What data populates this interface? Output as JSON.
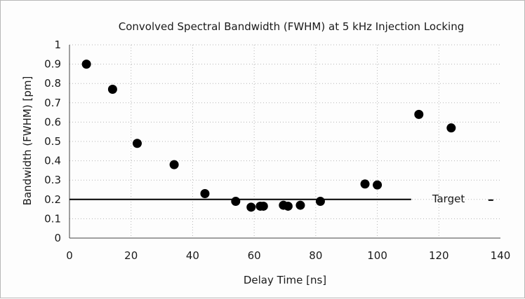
{
  "chart_data": {
    "type": "scatter",
    "title": "Convolved Spectral Bandwidth (FWHM) at 5 kHz Injection Locking",
    "xlabel": "Delay Time [ns]",
    "ylabel": "Bandwidth (FWHM) [pm]",
    "xlim": [
      0,
      140
    ],
    "ylim": [
      0,
      1
    ],
    "x_ticks": [
      0,
      20,
      40,
      60,
      80,
      100,
      120,
      140
    ],
    "y_ticks": [
      0,
      0.1,
      0.2,
      0.3,
      0.4,
      0.5,
      0.6,
      0.7,
      0.8,
      0.9,
      1
    ],
    "grid": "dotted",
    "series": [
      {
        "x": [
          5.5,
          14,
          22,
          34,
          44,
          54,
          59,
          62,
          63,
          69.5,
          71,
          75,
          81.5,
          96,
          100,
          113.5,
          124
        ],
        "y": [
          0.9,
          0.77,
          0.49,
          0.38,
          0.23,
          0.19,
          0.16,
          0.165,
          0.165,
          0.17,
          0.165,
          0.17,
          0.19,
          0.28,
          0.275,
          0.64,
          0.57
        ]
      }
    ],
    "reference_line": {
      "label": "Target",
      "y": 0.2,
      "x_range": [
        0,
        111
      ]
    },
    "marker_color": "#000000"
  }
}
